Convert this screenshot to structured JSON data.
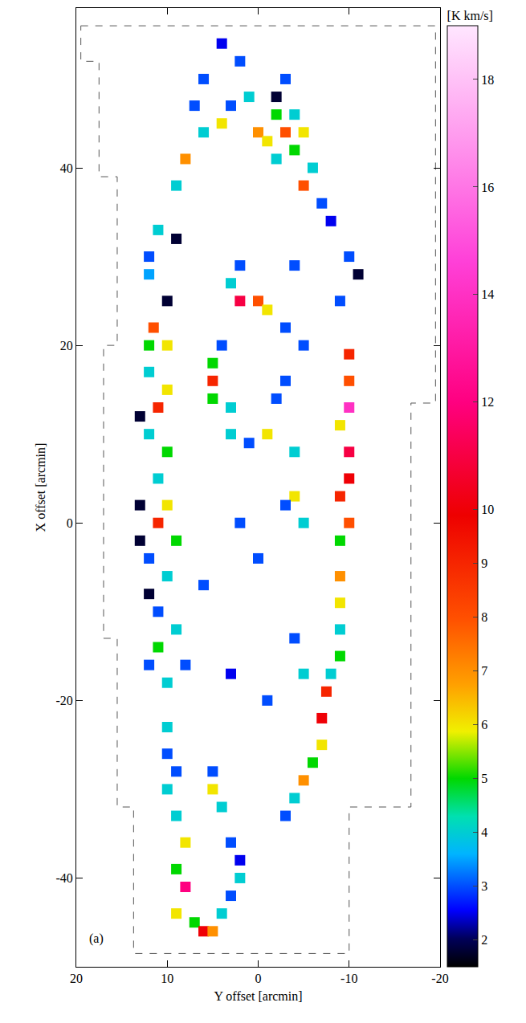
{
  "chart_data": {
    "type": "scatter",
    "marker": "square",
    "x_label": "Y offset [arcmin]",
    "y_label": "X offset [arcmin]",
    "xlim": [
      20,
      -20
    ],
    "xticks": [
      20,
      10,
      0,
      -10,
      -20
    ],
    "ylim": [
      -50,
      58
    ],
    "yticks": [
      -40,
      -20,
      0,
      20,
      40
    ],
    "grid": false,
    "annotations": [
      {
        "text": "(a)"
      }
    ],
    "colorbar_title": "[K km/s]",
    "color_range": [
      1.5,
      19
    ],
    "color_ticks": [
      2,
      3,
      4,
      5,
      6,
      7,
      8,
      9,
      10,
      12,
      14,
      16,
      18
    ],
    "x": [
      12,
      11,
      12,
      11.5,
      12,
      10,
      12,
      11,
      10,
      12,
      10,
      11,
      10,
      11,
      9,
      12,
      10,
      11,
      9,
      11,
      12,
      10,
      8,
      9,
      8,
      6,
      4,
      3,
      1,
      0,
      -1,
      -2,
      -3,
      -4,
      -5,
      -4,
      -5,
      -6,
      -7,
      -8,
      -2,
      -3,
      2,
      4,
      6,
      7,
      -10,
      -9,
      -10,
      -10,
      -10,
      -9,
      -10,
      -10,
      -9,
      -10,
      -9,
      -9,
      -9,
      -9,
      -9,
      -8,
      -7.5,
      -7,
      -7,
      -6,
      -5,
      -4,
      -3,
      9,
      10,
      9,
      8,
      9,
      8,
      9,
      7,
      6,
      5,
      4,
      3,
      2,
      10,
      10,
      5,
      4,
      5,
      3,
      2,
      2,
      0,
      -1,
      3,
      5,
      5,
      5,
      4,
      3,
      3,
      -1,
      1,
      -4,
      -4,
      -5,
      -3,
      2,
      -2,
      -3,
      -5,
      -3,
      -4,
      2,
      6,
      -5,
      -4,
      0,
      3,
      -1,
      13,
      13,
      12,
      13,
      10,
      -11,
      -2,
      9
    ],
    "y": [
      30,
      33,
      28,
      22,
      20,
      20,
      17,
      13,
      15,
      10,
      8,
      5,
      2,
      0,
      -2,
      -4,
      -6,
      -10,
      -12,
      -14,
      -16,
      -18,
      -16,
      38,
      41,
      44,
      45,
      47,
      48,
      44,
      43,
      46,
      44,
      46,
      44,
      42,
      38,
      40,
      36,
      34,
      41,
      50,
      52,
      54,
      50,
      47,
      30,
      25,
      19,
      16,
      13,
      11,
      8,
      5,
      3,
      0,
      -2,
      -6,
      -9,
      -12,
      -15,
      -17,
      -19,
      -22,
      -25,
      -27,
      -29,
      -31,
      -33,
      -28,
      -30,
      -33,
      -36,
      -39,
      -41,
      -44,
      -45,
      -46,
      -46,
      -44,
      -42,
      -40,
      -23,
      -26,
      -30,
      -32,
      -28,
      -36,
      -38,
      25,
      25,
      24,
      27,
      18,
      16,
      14,
      20,
      13,
      10,
      10,
      9,
      8,
      3,
      0,
      2,
      0,
      14,
      16,
      20,
      22,
      29,
      29,
      -7,
      -17,
      -13,
      -4,
      -17,
      -20,
      12,
      2,
      -8,
      -2,
      25,
      28,
      48,
      32
    ],
    "values": [
      3,
      4,
      3.5,
      8,
      5,
      6,
      4,
      9,
      6,
      4,
      5,
      4,
      6,
      9,
      5,
      3,
      4,
      3,
      4,
      5,
      3,
      4,
      3,
      4,
      7,
      4,
      6,
      3,
      4,
      7,
      6,
      5,
      8,
      4,
      6,
      5,
      8,
      4,
      3,
      2.5,
      4,
      3,
      3,
      2.5,
      3,
      3,
      3,
      3,
      9,
      8,
      14,
      6,
      11,
      10,
      9,
      8,
      5,
      7,
      6,
      4,
      5,
      4,
      9,
      10,
      6,
      5,
      7,
      4,
      3,
      3,
      4,
      4,
      6,
      5,
      12,
      6,
      5,
      10,
      7,
      4,
      3,
      4,
      4,
      3,
      6,
      4,
      3,
      3,
      2.5,
      11,
      8,
      6,
      4,
      5,
      9,
      5,
      3,
      4,
      4,
      6,
      3,
      4,
      6,
      4,
      3,
      3,
      3,
      3,
      3,
      3,
      3,
      3,
      3,
      4,
      3,
      3,
      2.5,
      3,
      1.8,
      1.8,
      1.8,
      1.8,
      1.8,
      1.8,
      1.8,
      1.8
    ],
    "survey_boundary": {
      "x": [
        19.5,
        -19.5,
        -19.5,
        -16.8,
        -16.8,
        -10,
        -10,
        13.7,
        13.7,
        15.5,
        15.5,
        17,
        17,
        15.5,
        15.5,
        17.5,
        17.5,
        19.5,
        19.5
      ],
      "y": [
        56,
        56,
        13.5,
        13.5,
        -32,
        -32,
        -48.5,
        -48.5,
        -32,
        -32,
        -13,
        -13,
        20,
        20,
        39,
        39,
        52,
        52,
        56
      ]
    }
  }
}
